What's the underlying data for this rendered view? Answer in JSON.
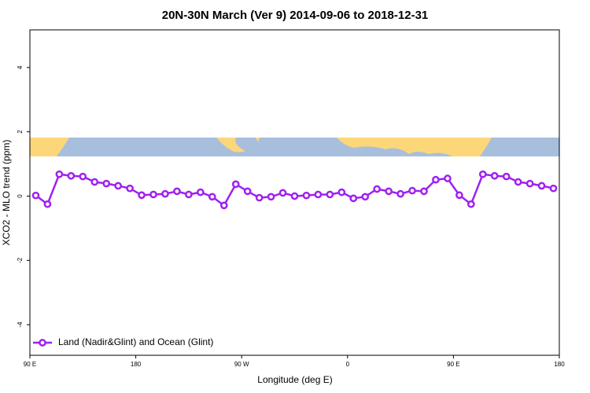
{
  "chart_data": {
    "type": "line",
    "title": "20N-30N March (Ver 9)   2014-09-06 to 2018-12-31",
    "x_label": "Longitude (deg E)",
    "y_label": "XCO2 - MLO trend (ppm)",
    "x": [
      95,
      105,
      115,
      125,
      135,
      145,
      155,
      165,
      175,
      185,
      195,
      205,
      215,
      225,
      235,
      245,
      255,
      265,
      275,
      285,
      295,
      305,
      315,
      325,
      335,
      345,
      355,
      365,
      375,
      385,
      395,
      405,
      415,
      425,
      435,
      445,
      455,
      465,
      475,
      485,
      495,
      505,
      515,
      525,
      535
    ],
    "series": [
      {
        "name": "Land (Nadir&Glint) and Ocean (Glint)",
        "color": "#a020f0",
        "values": [
          0.02,
          -0.25,
          0.68,
          0.63,
          0.61,
          0.44,
          0.39,
          0.32,
          0.24,
          0.03,
          0.05,
          0.07,
          0.15,
          0.05,
          0.12,
          -0.02,
          -0.29,
          0.37,
          0.15,
          -0.05,
          -0.02,
          0.1,
          0,
          0.02,
          0.05,
          0.05,
          0.12,
          -0.07,
          -0.02,
          0.22,
          0.15,
          0.07,
          0.17,
          0.15,
          0.51,
          0.55,
          0.03,
          -0.25,
          0.68,
          0.63,
          0.61,
          0.44,
          0.39,
          0.32,
          0.24
        ]
      }
    ],
    "xlim": [
      90,
      540
    ],
    "xticks": [
      {
        "value": 90,
        "label": "90 E"
      },
      180,
      {
        "value": 270,
        "label": "90 W"
      },
      {
        "value": 360,
        "label": "0"
      },
      {
        "value": 450,
        "label": "90 E"
      },
      {
        "value": 540,
        "label": "180"
      }
    ],
    "ylim": [
      -4.95,
      5.17
    ],
    "yticks": [
      -4,
      -2,
      0,
      2,
      4
    ],
    "legend": "bottom-left"
  }
}
